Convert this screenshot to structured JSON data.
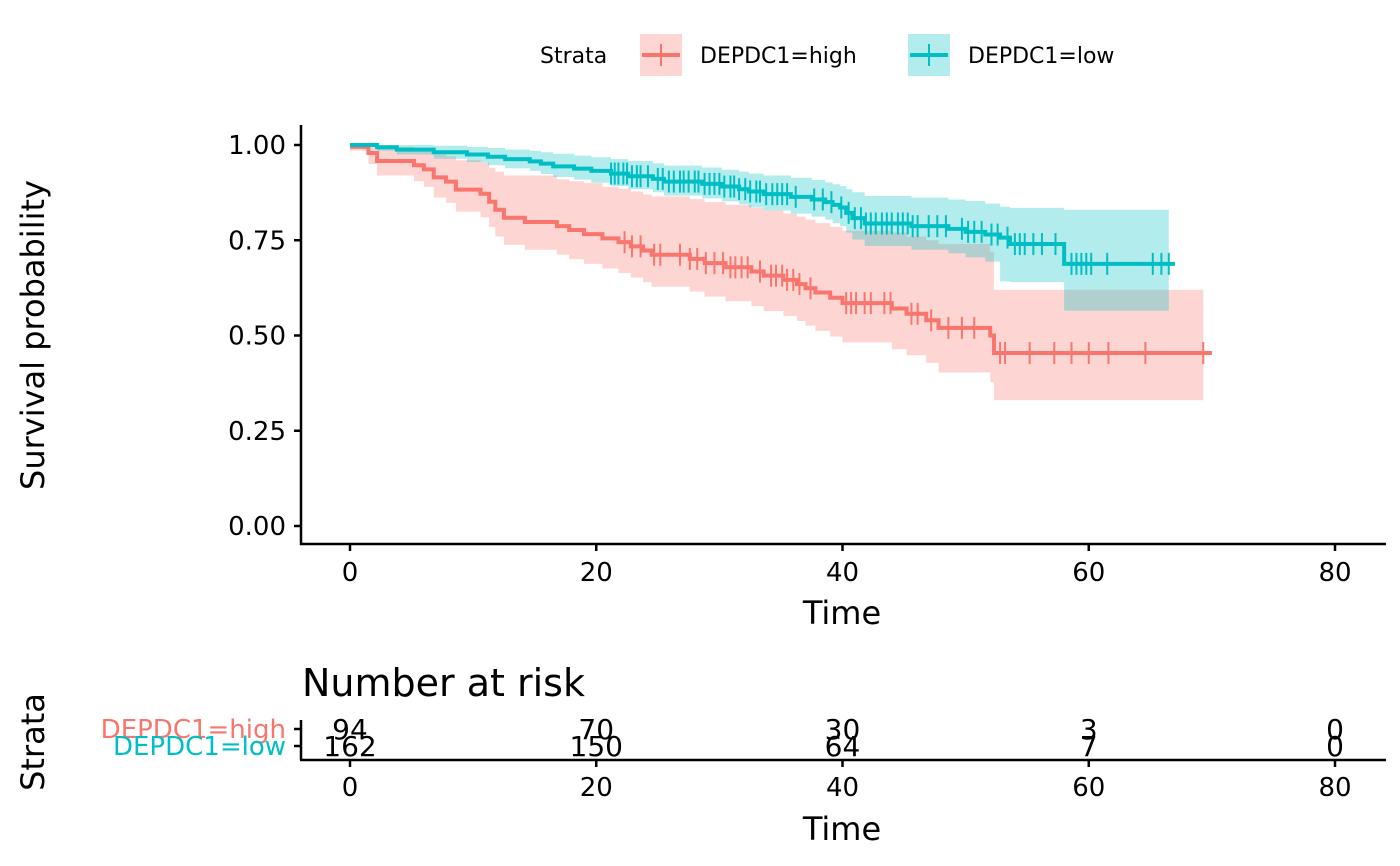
{
  "chart_data": {
    "type": "line",
    "subtype": "kaplan-meier",
    "title": "",
    "xlabel": "Time",
    "ylabel": "Survival probability",
    "xlim": [
      -2,
      84
    ],
    "ylim": [
      0,
      1
    ],
    "x_ticks": [
      0,
      20,
      40,
      60,
      80
    ],
    "y_ticks": [
      0,
      0.25,
      0.5,
      0.75,
      1.0
    ],
    "y_tick_labels": [
      "0.00",
      "0.25",
      "0.50",
      "0.75",
      "1.00"
    ],
    "grid": false,
    "legend": {
      "title": "Strata",
      "position": "top",
      "entries": [
        "DEPDC1=high",
        "DEPDC1=low"
      ]
    },
    "series": [
      {
        "name": "DEPDC1=high",
        "color": "#F8766D",
        "ci_color": "#F8766D",
        "steps": [
          [
            0,
            0.995
          ],
          [
            1.5,
            0.979
          ],
          [
            2.2,
            0.958
          ],
          [
            5.2,
            0.947
          ],
          [
            6,
            0.936
          ],
          [
            6.8,
            0.915
          ],
          [
            7.8,
            0.904
          ],
          [
            8.6,
            0.883
          ],
          [
            10.6,
            0.872
          ],
          [
            11.3,
            0.851
          ],
          [
            11.8,
            0.83
          ],
          [
            12.5,
            0.809
          ],
          [
            14.2,
            0.798
          ],
          [
            16.8,
            0.787
          ],
          [
            17.8,
            0.777
          ],
          [
            19,
            0.766
          ],
          [
            20.5,
            0.755
          ],
          [
            21.8,
            0.745
          ],
          [
            22.8,
            0.734
          ],
          [
            23.8,
            0.723
          ],
          [
            24.5,
            0.712
          ],
          [
            27.6,
            0.701
          ],
          [
            28.8,
            0.69
          ],
          [
            30.5,
            0.679
          ],
          [
            32.6,
            0.668
          ],
          [
            33.6,
            0.657
          ],
          [
            35.2,
            0.646
          ],
          [
            36.3,
            0.635
          ],
          [
            37,
            0.624
          ],
          [
            37.8,
            0.613
          ],
          [
            39,
            0.599
          ],
          [
            40,
            0.585
          ],
          [
            44,
            0.571
          ],
          [
            45.2,
            0.557
          ],
          [
            46.8,
            0.54
          ],
          [
            47.8,
            0.52
          ],
          [
            52,
            0.5
          ],
          [
            52.3,
            0.454
          ],
          [
            70,
            0.454
          ]
        ],
        "ci_steps": [
          [
            0,
            0.985,
            1.0
          ],
          [
            1.5,
            0.95,
            1.0
          ],
          [
            2.2,
            0.92,
            0.995
          ],
          [
            5.2,
            0.905,
            0.99
          ],
          [
            6,
            0.89,
            0.985
          ],
          [
            6.8,
            0.862,
            0.975
          ],
          [
            7.8,
            0.848,
            0.97
          ],
          [
            8.6,
            0.825,
            0.96
          ],
          [
            10.6,
            0.81,
            0.955
          ],
          [
            11.3,
            0.785,
            0.94
          ],
          [
            11.8,
            0.76,
            0.93
          ],
          [
            12.5,
            0.738,
            0.92
          ],
          [
            14.2,
            0.725,
            0.92
          ],
          [
            16.8,
            0.712,
            0.91
          ],
          [
            17.8,
            0.7,
            0.905
          ],
          [
            19,
            0.688,
            0.9
          ],
          [
            20.5,
            0.676,
            0.89
          ],
          [
            21.8,
            0.664,
            0.885
          ],
          [
            22.8,
            0.652,
            0.878
          ],
          [
            23.8,
            0.64,
            0.87
          ],
          [
            24.5,
            0.628,
            0.865
          ],
          [
            27.6,
            0.615,
            0.858
          ],
          [
            28.8,
            0.602,
            0.85
          ],
          [
            30.5,
            0.59,
            0.843
          ],
          [
            32.6,
            0.577,
            0.835
          ],
          [
            33.6,
            0.564,
            0.828
          ],
          [
            35.2,
            0.551,
            0.82
          ],
          [
            36.3,
            0.538,
            0.812
          ],
          [
            37,
            0.526,
            0.804
          ],
          [
            37.8,
            0.512,
            0.795
          ],
          [
            39,
            0.497,
            0.785
          ],
          [
            40,
            0.482,
            0.775
          ],
          [
            44,
            0.464,
            0.77
          ],
          [
            45.2,
            0.448,
            0.76
          ],
          [
            46.8,
            0.428,
            0.75
          ],
          [
            47.8,
            0.403,
            0.74
          ],
          [
            52,
            0.378,
            0.72
          ],
          [
            52.3,
            0.33,
            0.62
          ],
          [
            69.3,
            0.33,
            0.62
          ]
        ],
        "censor_times": [
          22.3,
          22.9,
          23.6,
          24.7,
          25.2,
          26.8,
          27.6,
          28.2,
          28.9,
          29.6,
          30.3,
          30.9,
          31.3,
          31.8,
          32.3,
          33.3,
          34.2,
          34.6,
          35.1,
          35.5,
          36,
          36.5,
          37.4,
          40.3,
          40.7,
          41.1,
          41.8,
          42.3,
          43.4,
          43.9,
          45.6,
          46.1,
          47.2,
          48.6,
          49.7,
          50.7,
          52.8,
          53.2,
          55.2,
          57.2,
          58.6,
          60,
          61.6,
          64.6,
          69.3
        ]
      },
      {
        "name": "DEPDC1=low",
        "color": "#00BFC4",
        "ci_color": "#00BFC4",
        "steps": [
          [
            0,
            1.0
          ],
          [
            2.2,
            0.994
          ],
          [
            3.8,
            0.988
          ],
          [
            6.8,
            0.981
          ],
          [
            9.5,
            0.975
          ],
          [
            11.2,
            0.969
          ],
          [
            12.6,
            0.963
          ],
          [
            14.6,
            0.957
          ],
          [
            15.5,
            0.951
          ],
          [
            16.5,
            0.944
          ],
          [
            18.2,
            0.938
          ],
          [
            19.6,
            0.932
          ],
          [
            21.2,
            0.925
          ],
          [
            22.6,
            0.918
          ],
          [
            24.6,
            0.911
          ],
          [
            25.5,
            0.904
          ],
          [
            28.6,
            0.898
          ],
          [
            30.2,
            0.891
          ],
          [
            31.6,
            0.884
          ],
          [
            32.4,
            0.878
          ],
          [
            33.6,
            0.871
          ],
          [
            35.8,
            0.864
          ],
          [
            37.5,
            0.857
          ],
          [
            38.6,
            0.85
          ],
          [
            39.2,
            0.843
          ],
          [
            39.8,
            0.836
          ],
          [
            40.3,
            0.822
          ],
          [
            40.8,
            0.808
          ],
          [
            41.8,
            0.794
          ],
          [
            45.6,
            0.787
          ],
          [
            48.6,
            0.78
          ],
          [
            50,
            0.772
          ],
          [
            51.6,
            0.765
          ],
          [
            52.8,
            0.757
          ],
          [
            53.6,
            0.74
          ],
          [
            58,
            0.688
          ],
          [
            67,
            0.688
          ]
        ],
        "ci_steps": [
          [
            0,
            0.995,
            1.0
          ],
          [
            2.2,
            0.985,
            1.0
          ],
          [
            3.8,
            0.975,
            1.0
          ],
          [
            6.8,
            0.964,
            0.998
          ],
          [
            9.5,
            0.955,
            0.995
          ],
          [
            11.2,
            0.947,
            0.992
          ],
          [
            12.6,
            0.939,
            0.988
          ],
          [
            14.6,
            0.932,
            0.985
          ],
          [
            15.5,
            0.924,
            0.981
          ],
          [
            16.5,
            0.916,
            0.977
          ],
          [
            18.2,
            0.909,
            0.972
          ],
          [
            19.6,
            0.901,
            0.968
          ],
          [
            21.2,
            0.892,
            0.963
          ],
          [
            22.6,
            0.884,
            0.958
          ],
          [
            24.6,
            0.876,
            0.952
          ],
          [
            25.5,
            0.867,
            0.946
          ],
          [
            28.6,
            0.86,
            0.941
          ],
          [
            30.2,
            0.852,
            0.935
          ],
          [
            31.6,
            0.844,
            0.93
          ],
          [
            32.4,
            0.836,
            0.925
          ],
          [
            33.6,
            0.828,
            0.92
          ],
          [
            35.8,
            0.82,
            0.914
          ],
          [
            37.5,
            0.812,
            0.908
          ],
          [
            38.6,
            0.804,
            0.902
          ],
          [
            39.2,
            0.795,
            0.897
          ],
          [
            39.8,
            0.787,
            0.892
          ],
          [
            40.3,
            0.77,
            0.884
          ],
          [
            40.8,
            0.752,
            0.876
          ],
          [
            41.8,
            0.735,
            0.866
          ],
          [
            45.6,
            0.725,
            0.862
          ],
          [
            48.6,
            0.716,
            0.857
          ],
          [
            50,
            0.705,
            0.853
          ],
          [
            51.6,
            0.694,
            0.846
          ],
          [
            52.8,
            0.642,
            0.838
          ],
          [
            53.6,
            0.64,
            0.835
          ],
          [
            58,
            0.565,
            0.83
          ],
          [
            66.5,
            0.565,
            0.83
          ]
        ],
        "censor_times": [
          21.2,
          21.5,
          21.8,
          22.2,
          22.5,
          22.9,
          23.3,
          23.6,
          24.2,
          25,
          25.4,
          25.9,
          26.3,
          26.8,
          27.1,
          27.5,
          28,
          28.3,
          28.8,
          29.2,
          29.6,
          30,
          30.4,
          30.9,
          31.2,
          31.6,
          32.1,
          32.5,
          33,
          33.3,
          33.8,
          34.3,
          34.7,
          35.1,
          35.5,
          36.2,
          37.7,
          38.4,
          39.1,
          39.9,
          40.5,
          41,
          41.5,
          41.9,
          42.3,
          42.7,
          43.2,
          43.6,
          44,
          44.5,
          44.9,
          45.3,
          45.7,
          46.1,
          47,
          47.7,
          48.4,
          49.7,
          50.2,
          50.7,
          51.3,
          52.1,
          52.6,
          53.4,
          54,
          54.4,
          54.8,
          55.5,
          56.2,
          57.3,
          58.6,
          59,
          59.4,
          59.8,
          60.2,
          61.5,
          65.2,
          65.9,
          66.5
        ]
      }
    ],
    "risk_table": {
      "title": "Number at risk",
      "ylabel": "Strata",
      "xlabel": "Time",
      "times": [
        0,
        20,
        40,
        60,
        80
      ],
      "rows": [
        {
          "strata": "DEPDC1=high",
          "color": "#F8766D",
          "counts": [
            94,
            70,
            30,
            3,
            0
          ]
        },
        {
          "strata": "DEPDC1=low",
          "color": "#00BFC4",
          "counts": [
            162,
            150,
            64,
            7,
            0
          ]
        }
      ]
    }
  }
}
